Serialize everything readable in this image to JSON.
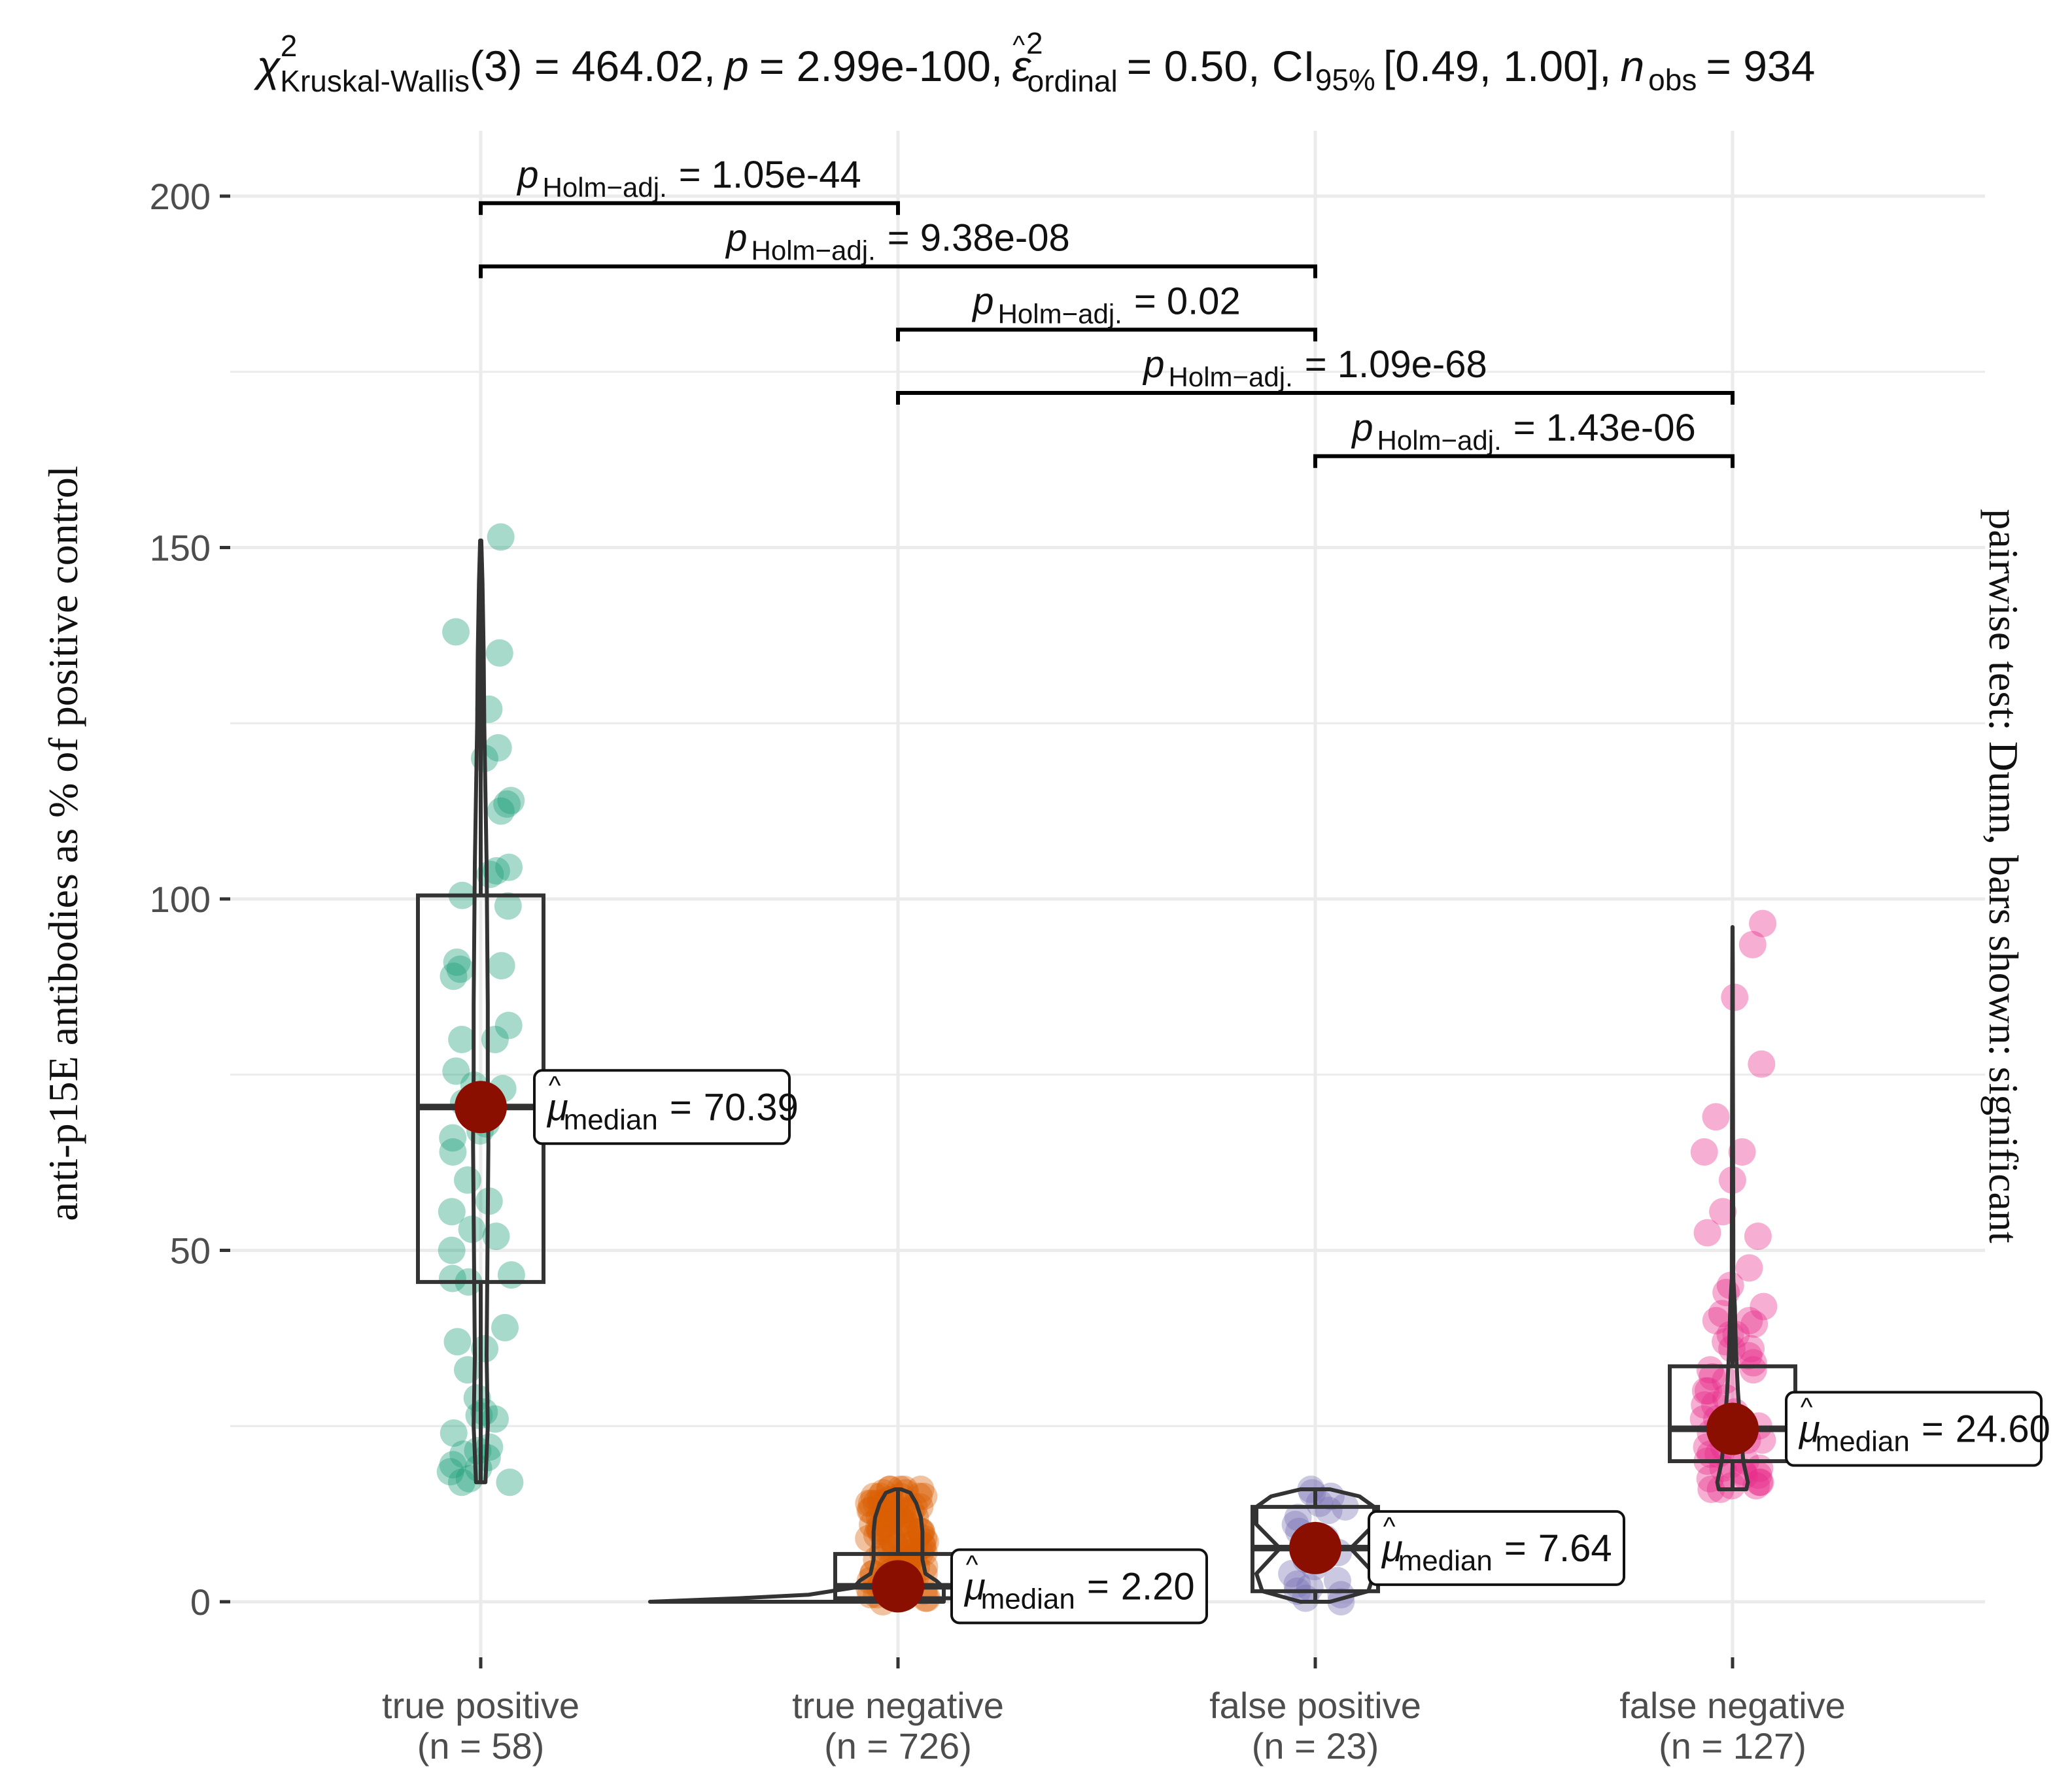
{
  "chart_data": {
    "type": "violin-box-scatter",
    "title": {
      "stat_symbol": "χ",
      "stat_sup": "2",
      "stat_sub": "Kruskal-Wallis",
      "df_text": "(3) = 464.02,",
      "p_symbol": "p",
      "p_text": "= 2.99e-100,",
      "eff_symbol": "ε",
      "eff_hat": "^",
      "eff_sup": "2",
      "eff_sub": "ordinal",
      "eff_text": "= 0.50, CI",
      "ci_sub": "95%",
      "ci_text": "[0.49, 1.00],",
      "n_symbol": "n",
      "n_sub": "obs",
      "n_text": "= 934"
    },
    "ylabel": "anti-p15E antibodies as % of positive control",
    "right_label": "pairwise test: Dunn, bars shown: significant",
    "ylim": [
      -10,
      210
    ],
    "y_ticks": [
      0,
      50,
      100,
      150,
      200
    ],
    "y_tick_labels": [
      "0",
      "50",
      "100",
      "150",
      "200"
    ],
    "grid": true,
    "groups": [
      {
        "name": "true positive",
        "n_label": "(n = 58)",
        "color": "#1B9E77",
        "median": 70.39,
        "median_label": "70.39",
        "box": {
          "q1": 45.5,
          "median": 70.39,
          "q3": 100.5,
          "whisker_low": 17,
          "whisker_high": 151
        },
        "points": [
          151.5,
          138,
          135,
          127,
          121.5,
          120,
          114,
          113.5,
          112.5,
          104.5,
          104,
          103.5,
          100.5,
          99,
          91,
          90.5,
          90,
          89,
          82,
          80,
          80,
          75.5,
          73.5,
          73,
          71,
          69,
          68,
          67,
          66,
          64,
          60,
          57,
          55.5,
          53,
          52,
          50,
          46.5,
          46,
          45.5,
          39,
          37,
          36,
          33,
          27,
          26.5,
          26,
          22,
          21.5,
          21,
          20.5,
          19.5,
          19,
          18.5,
          17.5,
          17,
          17,
          24,
          29
        ],
        "violin": [
          [
            17,
            0.08
          ],
          [
            25,
            0.12
          ],
          [
            35,
            0.1
          ],
          [
            45,
            0.11
          ],
          [
            55,
            0.12
          ],
          [
            65,
            0.13
          ],
          [
            75,
            0.12
          ],
          [
            85,
            0.12
          ],
          [
            95,
            0.11
          ],
          [
            105,
            0.1
          ],
          [
            115,
            0.08
          ],
          [
            125,
            0.06
          ],
          [
            135,
            0.05
          ],
          [
            145,
            0.03
          ],
          [
            151,
            0.01
          ]
        ]
      },
      {
        "name": "true negative",
        "n_label": "(n = 726)",
        "color": "#D95F02",
        "median": 2.2,
        "median_label": "2.20",
        "box": {
          "q1": 0.5,
          "median": 2.2,
          "q3": 6.8,
          "whisker_low": 0,
          "whisker_high": 16
        },
        "points": [
          0,
          0.5,
          1,
          1.5,
          2,
          2.5,
          3,
          3.5,
          4,
          4.5,
          5,
          5.5,
          6,
          6.5,
          7,
          7.5,
          8,
          8.5,
          9,
          9.5,
          10,
          10.5,
          11,
          11.5,
          12,
          12.5,
          13,
          13.5,
          14,
          14.5,
          15,
          15.5,
          16,
          1,
          2,
          3,
          4,
          5,
          6,
          7,
          8,
          9,
          10,
          11,
          12,
          13,
          14,
          15,
          16,
          0.5,
          1.5,
          2.5,
          3.5,
          4.5,
          5.5,
          6.5,
          7.5,
          8.5,
          9.5,
          10.5,
          11.5,
          12.5,
          13.5,
          14.5,
          15.5,
          2,
          4,
          6,
          8,
          10,
          12,
          14,
          16,
          3,
          5,
          7,
          9,
          11,
          13,
          15,
          1,
          2,
          3,
          4,
          5,
          6,
          7,
          8,
          9,
          10,
          11,
          12,
          13,
          14,
          15,
          16,
          16,
          15,
          14,
          13,
          12,
          11,
          10,
          9,
          8,
          7
        ],
        "violin": [
          [
            0,
            2.5
          ],
          [
            0.5,
            1.6
          ],
          [
            1,
            0.9
          ],
          [
            2,
            0.45
          ],
          [
            3,
            0.25
          ],
          [
            4,
            0.18
          ],
          [
            6,
            0.16
          ],
          [
            8,
            0.16
          ],
          [
            10,
            0.16
          ],
          [
            12,
            0.15
          ],
          [
            14,
            0.12
          ],
          [
            15.5,
            0.08
          ],
          [
            16,
            0.02
          ]
        ]
      },
      {
        "name": "false positive",
        "n_label": "(n = 23)",
        "color": "#7570B3",
        "median": 7.64,
        "median_label": "7.64",
        "box": {
          "q1": 1.5,
          "median": 7.64,
          "q3": 13.5,
          "whisker_low": 0,
          "whisker_high": 16
        },
        "points": [
          0,
          0.5,
          1,
          1.5,
          2,
          3,
          4,
          5,
          6,
          7,
          7.6,
          8,
          9,
          10,
          11,
          12,
          13,
          13.5,
          14,
          15,
          15.5,
          16,
          2.5
        ],
        "violin": [
          [
            0,
            0.05
          ],
          [
            1.5,
            0.18
          ],
          [
            4,
            0.2
          ],
          [
            7.6,
            0.12
          ],
          [
            11,
            0.2
          ],
          [
            13.5,
            0.2
          ],
          [
            15,
            0.15
          ],
          [
            16,
            0.05
          ]
        ]
      },
      {
        "name": "false negative",
        "n_label": "(n = 127)",
        "color": "#E7298A",
        "median": 24.6,
        "median_label": "24.60",
        "box": {
          "q1": 20,
          "median": 24.6,
          "q3": 33.5,
          "whisker_low": 16,
          "whisker_high": 96
        },
        "points": [
          96.5,
          93.5,
          86,
          76.5,
          69,
          64,
          64,
          60,
          55.5,
          52.5,
          52,
          47.5,
          45,
          44,
          42,
          40,
          40,
          39.5,
          38,
          37,
          36,
          35,
          34,
          33,
          32,
          31.5,
          30,
          29,
          28,
          27,
          26,
          25,
          24.6,
          24,
          23,
          22,
          21,
          20,
          19.5,
          19,
          18.5,
          18,
          17.5,
          17,
          16.5,
          16,
          16,
          16.5,
          17,
          18,
          19,
          20,
          21,
          22,
          23,
          26,
          28,
          30,
          33,
          36,
          38,
          41
        ],
        "violin": [
          [
            16,
            0.9
          ],
          [
            17,
            1.0
          ],
          [
            18,
            0.9
          ],
          [
            20,
            0.7
          ],
          [
            24,
            0.55
          ],
          [
            30,
            0.35
          ],
          [
            36,
            0.22
          ],
          [
            42,
            0.15
          ],
          [
            46,
            0.05
          ],
          [
            52,
            0.05
          ],
          [
            60,
            0.04
          ],
          [
            70,
            0.03
          ],
          [
            80,
            0.02
          ],
          [
            90,
            0.015
          ],
          [
            96,
            0.005
          ]
        ]
      }
    ],
    "pairwise": [
      {
        "from": 0,
        "to": 1,
        "y": 199,
        "p_symbol": "p",
        "p_sub": "Holm−adj.",
        "p_text": "= 1.05e-44"
      },
      {
        "from": 0,
        "to": 2,
        "y": 190,
        "p_symbol": "p",
        "p_sub": "Holm−adj.",
        "p_text": "= 9.38e-08"
      },
      {
        "from": 1,
        "to": 2,
        "y": 181,
        "p_symbol": "p",
        "p_sub": "Holm−adj.",
        "p_text": "= 0.02"
      },
      {
        "from": 1,
        "to": 3,
        "y": 172,
        "p_symbol": "p",
        "p_sub": "Holm−adj.",
        "p_text": "= 1.09e-68"
      },
      {
        "from": 2,
        "to": 3,
        "y": 163,
        "p_symbol": "p",
        "p_sub": "Holm−adj.",
        "p_text": "= 1.43e-06"
      }
    ],
    "median_label": {
      "symbol": "μ",
      "hat": "^",
      "sub": "median",
      "eq": "="
    },
    "colors": {
      "median_point": "#8B0F00",
      "box_stroke": "#333333",
      "grid": "#EBEBEB",
      "text": "#222222",
      "tick_text": "#4D4D4D"
    }
  }
}
